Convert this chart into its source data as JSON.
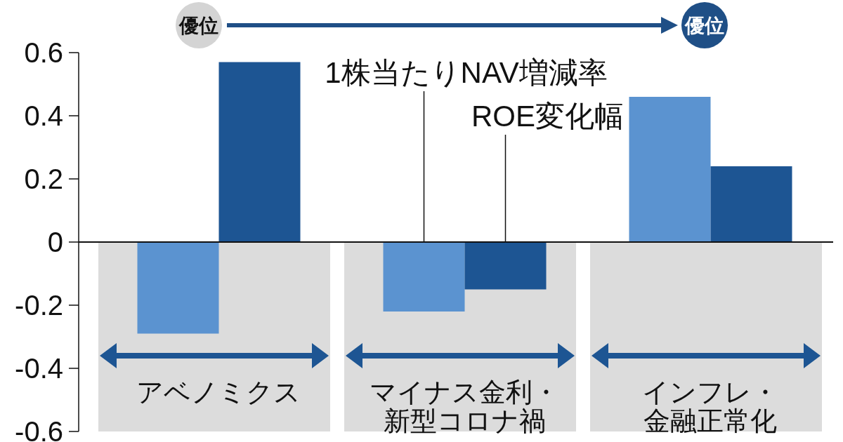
{
  "chart_data": {
    "type": "bar",
    "categories": [
      "アベノミクス",
      "マイナス金利・新型コロナ禍",
      "インフレ・金融正常化"
    ],
    "series": [
      {
        "name": "1株当たりNAV増減率",
        "color": "#5b93d0",
        "values": [
          -0.29,
          -0.22,
          0.46
        ]
      },
      {
        "name": "ROE変化幅",
        "color": "#1d5593",
        "values": [
          0.57,
          -0.15,
          0.24
        ]
      }
    ],
    "ylim": [
      -0.6,
      0.6
    ],
    "yticks": [
      -0.6,
      -0.4,
      -0.2,
      0,
      0.2,
      0.4,
      0.6
    ],
    "bands": [
      {
        "axis": "x",
        "from": "アベノミクス",
        "to": "アベノミクス",
        "color": "#dcdcdc"
      },
      {
        "axis": "x",
        "from": "マイナス金利・新型コロナ禍",
        "to": "マイナス金利・新型コロナ禍",
        "color": "#dcdcdc"
      },
      {
        "axis": "x",
        "from": "インフレ・金融正常化",
        "to": "インフレ・金融正常化",
        "color": "#dcdcdc"
      }
    ],
    "annotations": [
      "優位",
      "優位"
    ]
  }
}
